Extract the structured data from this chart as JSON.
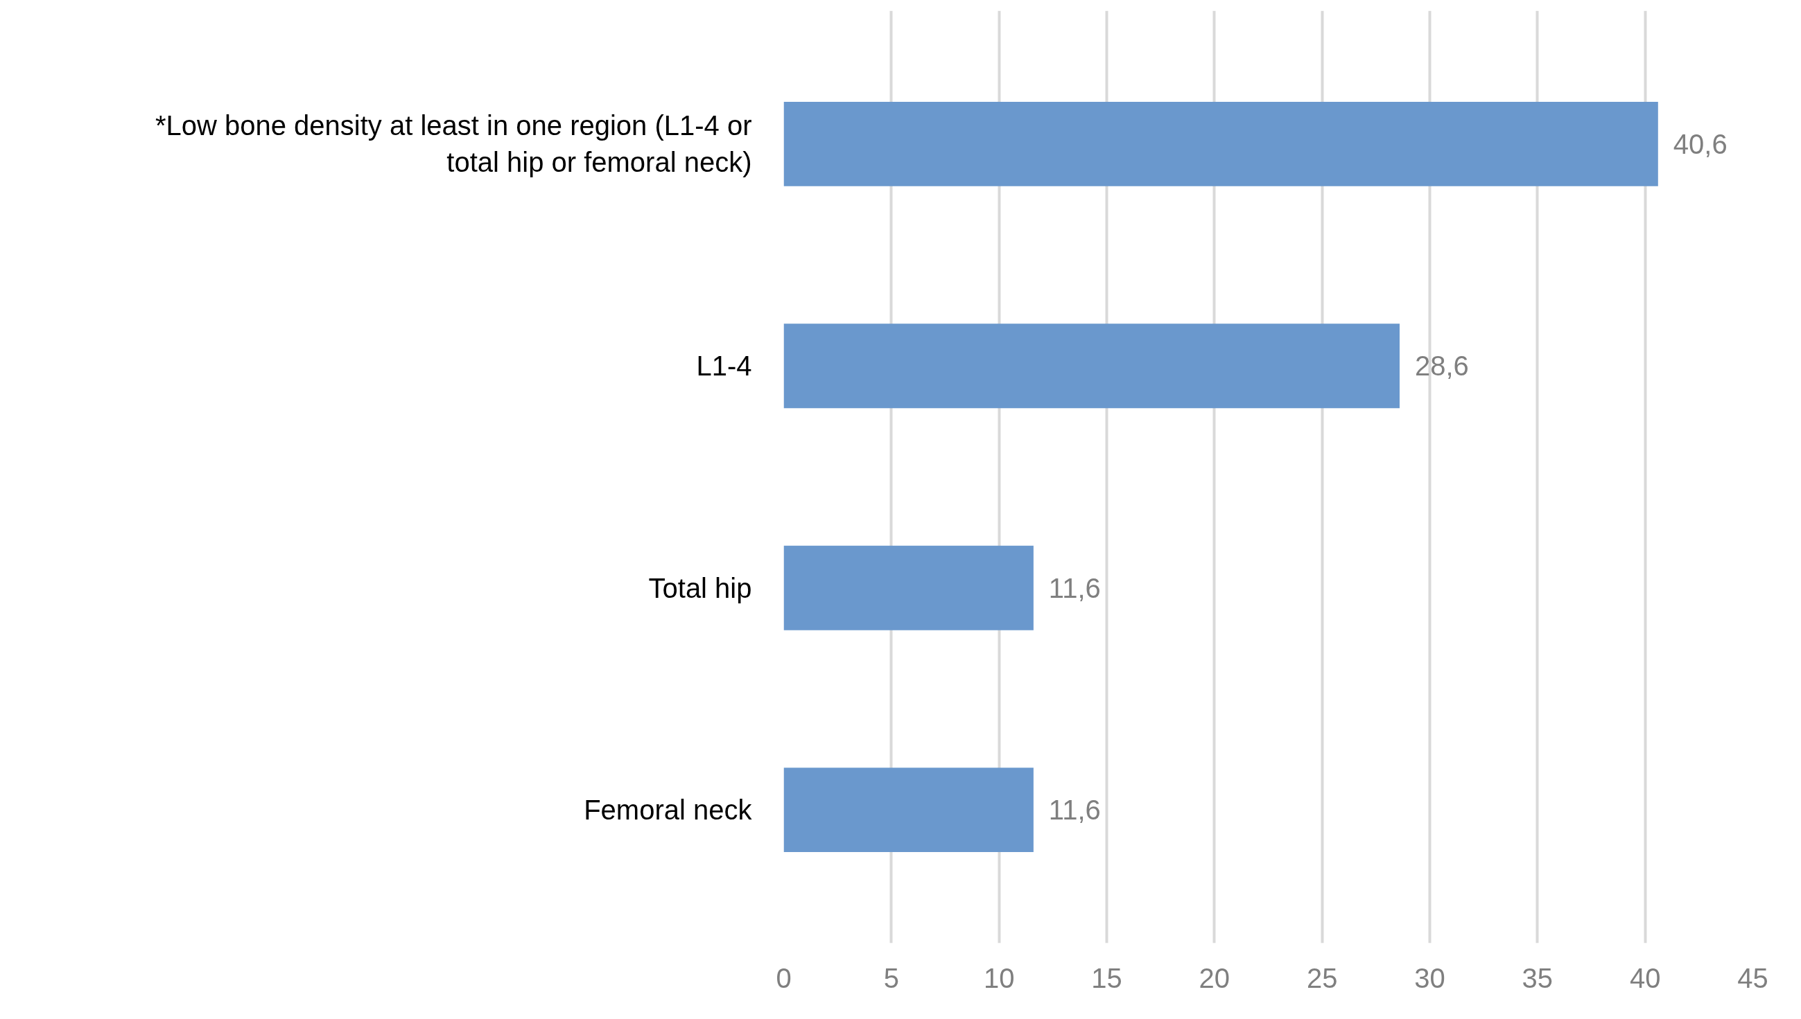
{
  "chart_data": {
    "type": "bar",
    "orientation": "horizontal",
    "categories": [
      "*Low bone density at least in one region (L1-4 or total hip or femoral neck)",
      "L1-4",
      "Total hip",
      "Femoral neck"
    ],
    "values": [
      40.6,
      28.6,
      11.6,
      11.6
    ],
    "value_labels": [
      "40,6",
      "28,6",
      "11,6",
      "11,6"
    ],
    "color": "#6a98cd",
    "xlim": [
      0,
      45
    ],
    "xticks": [
      0,
      5,
      10,
      15,
      20,
      25,
      30,
      35,
      40,
      45
    ],
    "grid": "x"
  }
}
